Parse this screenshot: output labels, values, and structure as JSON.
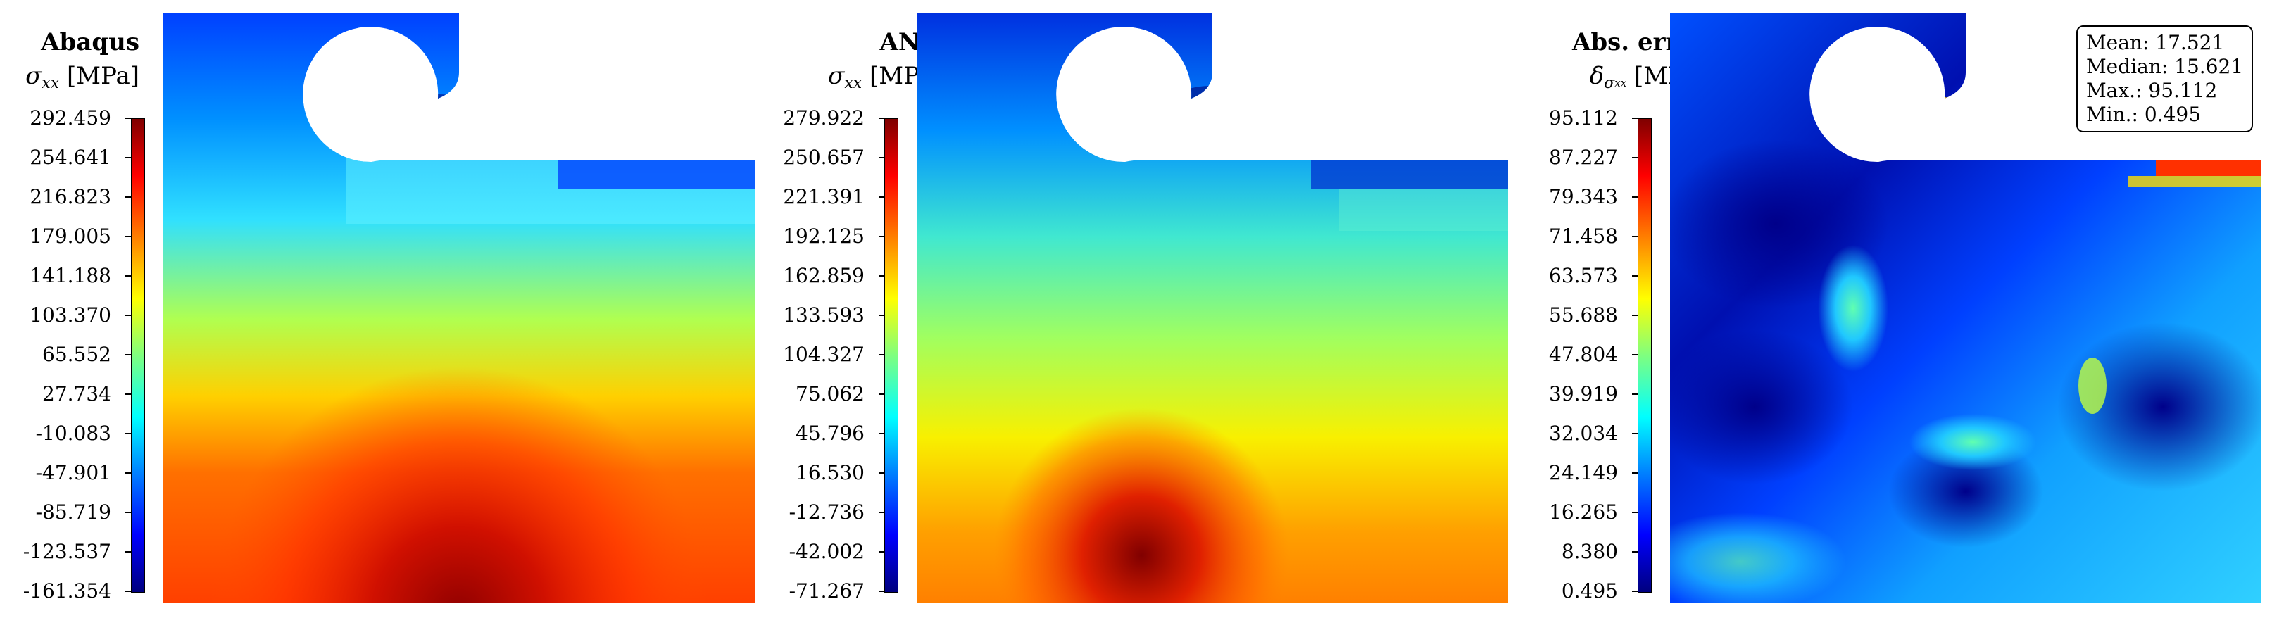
{
  "panels": [
    {
      "title": "Abaqus",
      "quantity": {
        "symbol": "σ",
        "subscript": "xx",
        "unit": "[MPa]"
      },
      "ticks": [
        "292.459",
        "254.641",
        "216.823",
        "179.005",
        "141.188",
        "103.370",
        "65.552",
        "27.734",
        "-10.083",
        "-47.901",
        "-85.719",
        "-123.537",
        "-161.354"
      ]
    },
    {
      "title": "ANN",
      "quantity": {
        "symbol": "σ",
        "subscript": "xx",
        "unit": "[MPa]"
      },
      "ticks": [
        "279.922",
        "250.657",
        "221.391",
        "192.125",
        "162.859",
        "133.593",
        "104.327",
        "75.062",
        "45.796",
        "16.530",
        "-12.736",
        "-42.002",
        "-71.267"
      ]
    },
    {
      "title": "Abs. error",
      "quantity": {
        "symbol": "δ",
        "subscript": "σ",
        "subsubscript": "xx",
        "unit": "[MPa]"
      },
      "ticks": [
        "95.112",
        "87.227",
        "79.343",
        "71.458",
        "63.573",
        "55.688",
        "47.804",
        "39.919",
        "32.034",
        "24.149",
        "16.265",
        "8.380",
        "0.495"
      ]
    }
  ],
  "stats": {
    "mean": "Mean: 17.521",
    "median": "Median: 15.621",
    "max": "Max.: 95.112",
    "min": "Min.: 0.495"
  }
}
